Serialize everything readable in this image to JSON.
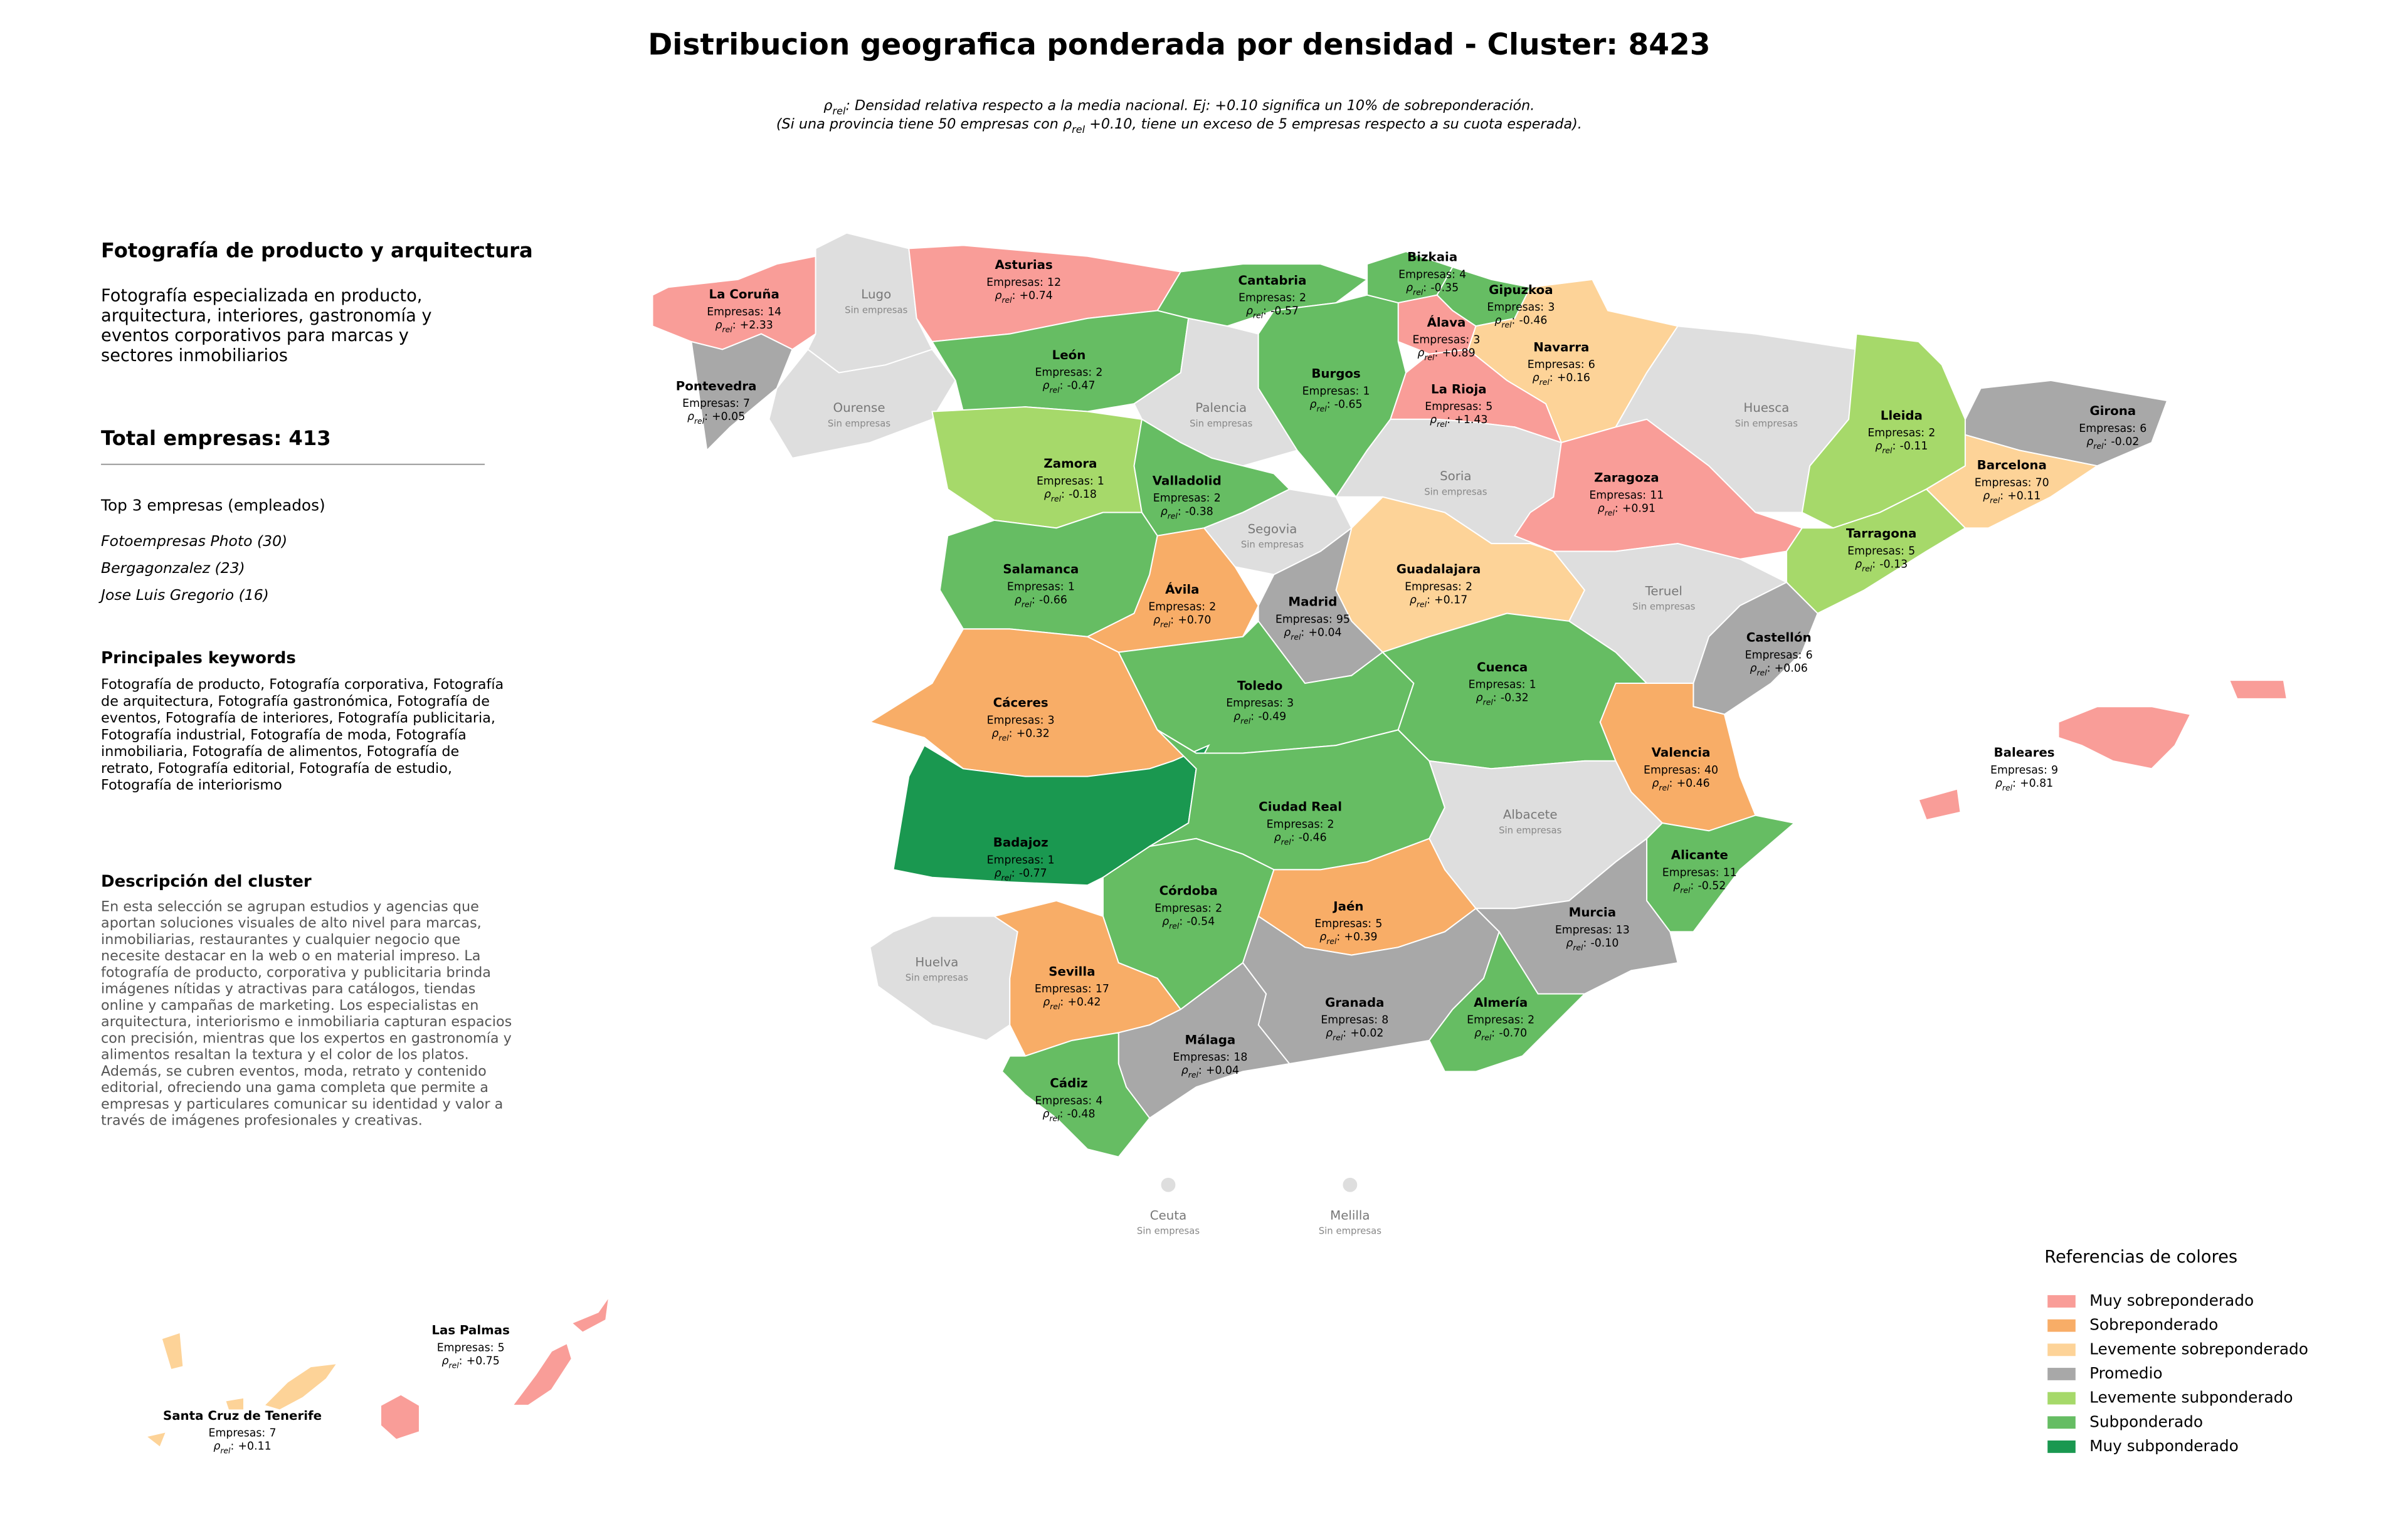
{
  "title": "Distribucion geografica ponderada por densidad - Cluster: 8423",
  "subtitle": [
    [
      {
        "text": "ρ"
      },
      {
        "text": "rel",
        "sub": true
      },
      {
        "text": ": Densidad relativa respecto a la media nacional. Ej: +0.10 significa un 10% de sobreponderación."
      }
    ],
    [
      {
        "text": "(Si una provincia tiene 50 empresas con ρ"
      },
      {
        "text": "rel",
        "sub": true
      },
      {
        "text": " +0.10, tiene un exceso de 5 empresas respecto a su cuota esperada)."
      }
    ]
  ],
  "panel": {
    "heading": "Fotografía de producto y arquitectura",
    "intro": [
      "Fotografía especializada en producto,",
      "arquitectura, interiores, gastronomía y",
      "eventos corporativos para marcas y",
      "sectores inmobiliarios"
    ],
    "total": "Total empresas: 413",
    "top_heading": "Top 3 empresas (empleados)",
    "top_companies": [
      "Fotoempresas Photo (30)",
      "Bergagonzalez (23)",
      "Jose Luis Gregorio (16)"
    ],
    "keywords_heading": "Principales keywords",
    "keywords": [
      "Fotografía de producto, Fotografía corporativa, Fotografía",
      "de arquitectura, Fotografía gastronómica, Fotografía de",
      "eventos, Fotografía de interiores, Fotografía publicitaria,",
      "Fotografía industrial, Fotografía de moda, Fotografía",
      "inmobiliaria, Fotografía de alimentos, Fotografía de",
      "retrato, Fotografía editorial, Fotografía de estudio,",
      "Fotografía de interiorismo"
    ],
    "description_heading": "Descripción del cluster",
    "description": [
      "En esta selección se agrupan estudios y agencias que",
      "aportan soluciones visuales de alto nivel para marcas,",
      "inmobiliarias, restaurantes y cualquier negocio que",
      "necesite destacar en la web o en material impreso. La",
      "fotografía de producto, corporativa y publicitaria brinda",
      "imágenes nítidas y atractivas para catálogos, tiendas",
      "online y campañas de marketing. Los especialistas en",
      "arquitectura, interiorismo e inmobiliaria capturan espacios",
      "con precisión, mientras que los expertos en gastronomía y",
      "alimentos resaltan la textura y el color de los platos.",
      "Además, se cubren eventos, moda, retrato y contenido",
      "editorial, ofreciendo una gama completa que permite a",
      "empresas y particulares comunicar su identidad y valor a",
      "través de imágenes profesionales y creativas."
    ]
  },
  "labels": {
    "empresas_prefix": "Empresas:",
    "rho_symbol": "ρ",
    "rho_subscript": "rel",
    "rho_suffix": ":",
    "no_data_label": "Sin empresas",
    "no_data_color": "#dedede"
  },
  "legend": {
    "title": "Referencias de colores",
    "entries": [
      {
        "label": "Muy sobreponderado",
        "color": "#f99d98"
      },
      {
        "label": "Sobreponderado",
        "color": "#f8ad67"
      },
      {
        "label": "Levemente sobreponderado",
        "color": "#fdd398"
      },
      {
        "label": "Promedio",
        "color": "#a8a8a8"
      },
      {
        "label": "Levemente subponderado",
        "color": "#a6d96a"
      },
      {
        "label": "Subponderado",
        "color": "#66bd63"
      },
      {
        "label": "Muy subponderado",
        "color": "#1a9850"
      }
    ]
  },
  "provinces": [
    {
      "name": "La Coruña",
      "empresas": 14,
      "rho": "+2.33",
      "category": 0
    },
    {
      "name": "Lugo",
      "empresas": null,
      "rho": null,
      "category": null
    },
    {
      "name": "Asturias",
      "empresas": 12,
      "rho": "+0.74",
      "category": 0
    },
    {
      "name": "Cantabria",
      "empresas": 2,
      "rho": "-0.57",
      "category": 5
    },
    {
      "name": "Bizkaia",
      "empresas": 4,
      "rho": "-0.35",
      "category": 5
    },
    {
      "name": "Gipuzkoa",
      "empresas": 3,
      "rho": "-0.46",
      "category": 5
    },
    {
      "name": "Álava",
      "empresas": 3,
      "rho": "+0.89",
      "category": 0
    },
    {
      "name": "Navarra",
      "empresas": 6,
      "rho": "+0.16",
      "category": 2
    },
    {
      "name": "Pontevedra",
      "empresas": 7,
      "rho": "+0.05",
      "category": 3
    },
    {
      "name": "Ourense",
      "empresas": null,
      "rho": null,
      "category": null
    },
    {
      "name": "León",
      "empresas": 2,
      "rho": "-0.47",
      "category": 5
    },
    {
      "name": "Palencia",
      "empresas": null,
      "rho": null,
      "category": null
    },
    {
      "name": "Burgos",
      "empresas": 1,
      "rho": "-0.65",
      "category": 5
    },
    {
      "name": "La Rioja",
      "empresas": 5,
      "rho": "+1.43",
      "category": 0
    },
    {
      "name": "Huesca",
      "empresas": null,
      "rho": null,
      "category": null
    },
    {
      "name": "Lleida",
      "empresas": 2,
      "rho": "-0.11",
      "category": 4
    },
    {
      "name": "Girona",
      "empresas": 6,
      "rho": "-0.02",
      "category": 3
    },
    {
      "name": "Zamora",
      "empresas": 1,
      "rho": "-0.18",
      "category": 4
    },
    {
      "name": "Valladolid",
      "empresas": 2,
      "rho": "-0.38",
      "category": 5
    },
    {
      "name": "Soria",
      "empresas": null,
      "rho": null,
      "category": null
    },
    {
      "name": "Zaragoza",
      "empresas": 11,
      "rho": "+0.91",
      "category": 0
    },
    {
      "name": "Barcelona",
      "empresas": 70,
      "rho": "+0.11",
      "category": 2
    },
    {
      "name": "Segovia",
      "empresas": null,
      "rho": null,
      "category": null
    },
    {
      "name": "Tarragona",
      "empresas": 5,
      "rho": "-0.13",
      "category": 4
    },
    {
      "name": "Salamanca",
      "empresas": 1,
      "rho": "-0.66",
      "category": 5
    },
    {
      "name": "Ávila",
      "empresas": 2,
      "rho": "+0.70",
      "category": 1
    },
    {
      "name": "Guadalajara",
      "empresas": 2,
      "rho": "+0.17",
      "category": 2
    },
    {
      "name": "Madrid",
      "empresas": 95,
      "rho": "+0.04",
      "category": 3
    },
    {
      "name": "Teruel",
      "empresas": null,
      "rho": null,
      "category": null
    },
    {
      "name": "Castellón",
      "empresas": 6,
      "rho": "+0.06",
      "category": 3
    },
    {
      "name": "Cáceres",
      "empresas": 3,
      "rho": "+0.32",
      "category": 1
    },
    {
      "name": "Toledo",
      "empresas": 3,
      "rho": "-0.49",
      "category": 5
    },
    {
      "name": "Cuenca",
      "empresas": 1,
      "rho": "-0.32",
      "category": 5
    },
    {
      "name": "Valencia",
      "empresas": 40,
      "rho": "+0.46",
      "category": 1
    },
    {
      "name": "Baleares",
      "empresas": 9,
      "rho": "+0.81",
      "category": 0
    },
    {
      "name": "Badajoz",
      "empresas": 1,
      "rho": "-0.77",
      "category": 6
    },
    {
      "name": "Ciudad Real",
      "empresas": 2,
      "rho": "-0.46",
      "category": 5
    },
    {
      "name": "Albacete",
      "empresas": null,
      "rho": null,
      "category": null
    },
    {
      "name": "Alicante",
      "empresas": 11,
      "rho": "-0.52",
      "category": 5
    },
    {
      "name": "Córdoba",
      "empresas": 2,
      "rho": "-0.54",
      "category": 5
    },
    {
      "name": "Jaén",
      "empresas": 5,
      "rho": "+0.39",
      "category": 1
    },
    {
      "name": "Murcia",
      "empresas": 13,
      "rho": "-0.10",
      "category": 3
    },
    {
      "name": "Huelva",
      "empresas": null,
      "rho": null,
      "category": null
    },
    {
      "name": "Sevilla",
      "empresas": 17,
      "rho": "+0.42",
      "category": 1
    },
    {
      "name": "Granada",
      "empresas": 8,
      "rho": "+0.02",
      "category": 3
    },
    {
      "name": "Almería",
      "empresas": 2,
      "rho": "-0.70",
      "category": 5
    },
    {
      "name": "Málaga",
      "empresas": 18,
      "rho": "+0.04",
      "category": 3
    },
    {
      "name": "Cádiz",
      "empresas": 4,
      "rho": "-0.48",
      "category": 5
    },
    {
      "name": "Las Palmas",
      "empresas": 5,
      "rho": "+0.75",
      "category": 0
    },
    {
      "name": "Santa Cruz de Tenerife",
      "empresas": 7,
      "rho": "+0.11",
      "category": 2
    },
    {
      "name": "Ceuta",
      "empresas": null,
      "rho": null,
      "category": null
    },
    {
      "name": "Melilla",
      "empresas": null,
      "rho": null,
      "category": null
    }
  ]
}
